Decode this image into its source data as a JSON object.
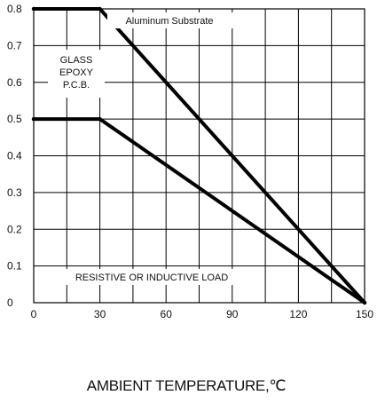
{
  "chart_data": {
    "type": "line",
    "title": "",
    "xlabel": "AMBIENT TEMPERATURE,℃",
    "ylabel": "",
    "xlim": [
      0,
      150
    ],
    "ylim": [
      0,
      0.8
    ],
    "x_ticks": [
      0,
      15,
      30,
      45,
      60,
      75,
      90,
      105,
      120,
      135,
      150
    ],
    "x_tick_labels": [
      "0",
      "",
      "30",
      "",
      "60",
      "",
      "90",
      "",
      "120",
      "",
      "150"
    ],
    "y_ticks": [
      0,
      0.1,
      0.2,
      0.3,
      0.4,
      0.5,
      0.6,
      0.7,
      0.8
    ],
    "y_tick_labels": [
      "0",
      "0.1",
      "0.2",
      "0.3",
      "0.4",
      "0.5",
      "0.6",
      "0.7",
      "0.8"
    ],
    "grid": true,
    "series": [
      {
        "name": "Aluminum Substrate",
        "color": "#000000",
        "x": [
          0,
          30,
          150
        ],
        "y": [
          0.8,
          0.8,
          0
        ]
      },
      {
        "name": "GLASS EPOXY P.C.B.",
        "color": "#000000",
        "x": [
          0,
          30,
          150
        ],
        "y": [
          0.5,
          0.5,
          0
        ]
      }
    ],
    "annotations": {
      "aluminum": "Aluminum Substrate",
      "glass_epoxy": [
        "GLASS",
        "EPOXY",
        "P.C.B."
      ],
      "load_note": "RESISTIVE OR INDUCTIVE LOAD"
    }
  }
}
